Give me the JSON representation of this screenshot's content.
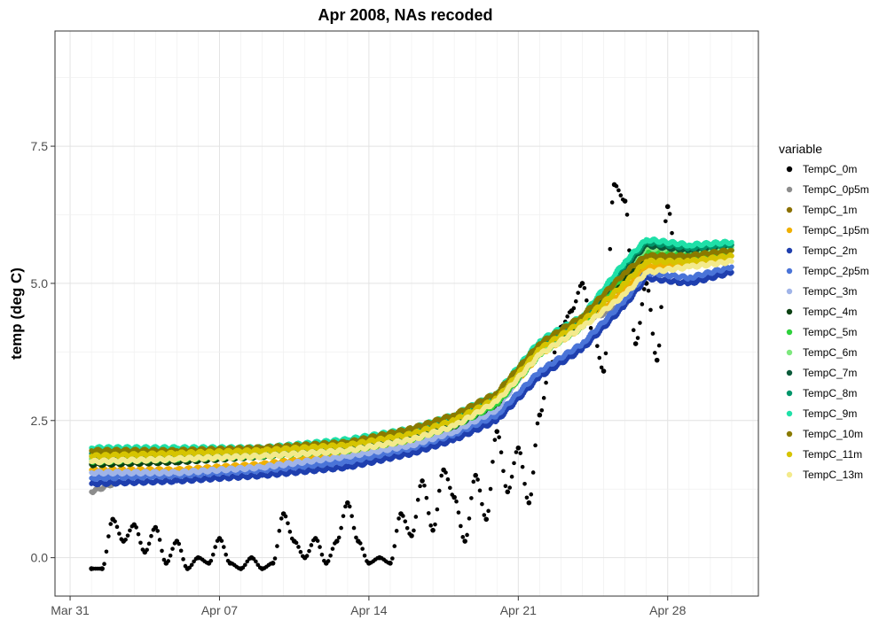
{
  "chart_data": {
    "type": "scatter",
    "title": "Apr 2008, NAs recoded",
    "xlabel": "",
    "ylabel": "temp (deg C)",
    "x_ticks": [
      "Mar 31",
      "Apr 07",
      "Apr 14",
      "Apr 21",
      "Apr 28"
    ],
    "y_ticks": [
      "0.0",
      "2.5",
      "5.0",
      "7.5"
    ],
    "xlim": [
      "2008-03-30T07:00",
      "2008-05-02T06:00"
    ],
    "ylim": [
      -0.7,
      9.6
    ],
    "grid": true,
    "legend_title": "variable",
    "legend_position": "right",
    "series": [
      {
        "name": "TempC_0m",
        "color": "#000000",
        "points": [
          [
            "2008-04-01",
            -0.2
          ],
          [
            "2008-04-01T12:00",
            -0.2
          ],
          [
            "2008-04-02",
            0.7
          ],
          [
            "2008-04-02T12:00",
            0.3
          ],
          [
            "2008-04-03",
            0.6
          ],
          [
            "2008-04-03T12:00",
            0.1
          ],
          [
            "2008-04-04",
            0.55
          ],
          [
            "2008-04-04T12:00",
            -0.1
          ],
          [
            "2008-04-05",
            0.3
          ],
          [
            "2008-04-05T12:00",
            -0.2
          ],
          [
            "2008-04-06",
            0.0
          ],
          [
            "2008-04-06T12:00",
            -0.1
          ],
          [
            "2008-04-07",
            0.35
          ],
          [
            "2008-04-07T12:00",
            -0.1
          ],
          [
            "2008-04-08",
            -0.2
          ],
          [
            "2008-04-08T12:00",
            0.0
          ],
          [
            "2008-04-09",
            -0.2
          ],
          [
            "2008-04-09T12:00",
            -0.1
          ],
          [
            "2008-04-10",
            0.8
          ],
          [
            "2008-04-10T12:00",
            0.3
          ],
          [
            "2008-04-11",
            0.0
          ],
          [
            "2008-04-11T12:00",
            0.35
          ],
          [
            "2008-04-12",
            -0.1
          ],
          [
            "2008-04-12T12:00",
            0.3
          ],
          [
            "2008-04-13",
            1.0
          ],
          [
            "2008-04-13T12:00",
            0.3
          ],
          [
            "2008-04-14",
            -0.1
          ],
          [
            "2008-04-14T12:00",
            0.0
          ],
          [
            "2008-04-15",
            -0.1
          ],
          [
            "2008-04-15T12:00",
            0.8
          ],
          [
            "2008-04-16",
            0.4
          ],
          [
            "2008-04-16T12:00",
            1.4
          ],
          [
            "2008-04-17",
            0.5
          ],
          [
            "2008-04-17T12:00",
            1.6
          ],
          [
            "2008-04-18",
            1.1
          ],
          [
            "2008-04-18T12:00",
            0.3
          ],
          [
            "2008-04-19",
            1.5
          ],
          [
            "2008-04-19T12:00",
            0.7
          ],
          [
            "2008-04-20",
            2.3
          ],
          [
            "2008-04-20T12:00",
            1.2
          ],
          [
            "2008-04-21",
            2.0
          ],
          [
            "2008-04-21T12:00",
            1.0
          ],
          [
            "2008-04-22",
            2.6
          ],
          [
            "2008-04-22T12:00",
            3.5
          ],
          [
            "2008-04-23",
            4.2
          ],
          [
            "2008-04-23T12:00",
            4.5
          ],
          [
            "2008-04-24",
            5.0
          ],
          [
            "2008-04-24T12:00",
            4.1
          ],
          [
            "2008-04-25",
            3.4
          ],
          [
            "2008-04-25T12:00",
            6.8
          ],
          [
            "2008-04-26",
            6.5
          ],
          [
            "2008-04-26T12:00",
            3.9
          ],
          [
            "2008-04-27",
            5.0
          ],
          [
            "2008-04-27T12:00",
            3.6
          ],
          [
            "2008-04-28",
            6.4
          ],
          [
            "2008-04-28T12:00",
            5.0
          ]
        ]
      },
      {
        "name": "TempC_0p5m",
        "color": "#8c8c8c",
        "points": [
          [
            "2008-04-01",
            1.2
          ],
          [
            "2008-04-03",
            1.5
          ],
          [
            "2008-04-07",
            1.6
          ],
          [
            "2008-04-12",
            1.7
          ],
          [
            "2008-04-14",
            2.0
          ],
          [
            "2008-04-18",
            2.4
          ],
          [
            "2008-04-20",
            2.9
          ],
          [
            "2008-04-22",
            3.8
          ],
          [
            "2008-04-24",
            4.3
          ],
          [
            "2008-04-26",
            4.6
          ],
          [
            "2008-04-27",
            5.5
          ],
          [
            "2008-04-29",
            5.5
          ],
          [
            "2008-05-01",
            5.6
          ]
        ]
      },
      {
        "name": "TempC_1m",
        "color": "#8b7000",
        "points": [
          [
            "2008-04-01",
            1.8
          ],
          [
            "2008-04-05",
            1.8
          ],
          [
            "2008-04-09",
            1.85
          ],
          [
            "2008-04-13",
            2.05
          ],
          [
            "2008-04-16",
            2.25
          ],
          [
            "2008-04-18",
            2.45
          ],
          [
            "2008-04-20",
            2.85
          ],
          [
            "2008-04-22",
            3.9
          ],
          [
            "2008-04-24",
            4.3
          ],
          [
            "2008-04-26",
            5.0
          ],
          [
            "2008-04-27",
            5.4
          ],
          [
            "2008-04-29",
            5.5
          ],
          [
            "2008-05-01",
            5.6
          ]
        ]
      },
      {
        "name": "TempC_1p5m",
        "color": "#f0b000",
        "points": [
          [
            "2008-04-01",
            1.6
          ],
          [
            "2008-04-05",
            1.6
          ],
          [
            "2008-04-09",
            1.7
          ],
          [
            "2008-04-13",
            1.9
          ],
          [
            "2008-04-16",
            2.1
          ],
          [
            "2008-04-18",
            2.35
          ],
          [
            "2008-04-20",
            2.8
          ],
          [
            "2008-04-22",
            3.7
          ],
          [
            "2008-04-24",
            4.2
          ],
          [
            "2008-04-26",
            4.9
          ],
          [
            "2008-04-27",
            5.3
          ],
          [
            "2008-04-29",
            5.4
          ],
          [
            "2008-05-01",
            5.5
          ]
        ]
      },
      {
        "name": "TempC_2m",
        "color": "#1f3fae",
        "points": [
          [
            "2008-04-01",
            1.35
          ],
          [
            "2008-04-05",
            1.4
          ],
          [
            "2008-04-09",
            1.5
          ],
          [
            "2008-04-13",
            1.65
          ],
          [
            "2008-04-16",
            1.9
          ],
          [
            "2008-04-18",
            2.15
          ],
          [
            "2008-04-20",
            2.5
          ],
          [
            "2008-04-22",
            3.3
          ],
          [
            "2008-04-24",
            3.8
          ],
          [
            "2008-04-26",
            4.6
          ],
          [
            "2008-04-27",
            5.1
          ],
          [
            "2008-04-29",
            5.0
          ],
          [
            "2008-05-01",
            5.2
          ]
        ]
      },
      {
        "name": "TempC_2p5m",
        "color": "#4a74d8",
        "points": [
          [
            "2008-04-01",
            1.45
          ],
          [
            "2008-04-05",
            1.5
          ],
          [
            "2008-04-09",
            1.6
          ],
          [
            "2008-04-13",
            1.75
          ],
          [
            "2008-04-16",
            2.0
          ],
          [
            "2008-04-18",
            2.25
          ],
          [
            "2008-04-20",
            2.6
          ],
          [
            "2008-04-22",
            3.4
          ],
          [
            "2008-04-24",
            3.9
          ],
          [
            "2008-04-26",
            4.7
          ],
          [
            "2008-04-27",
            5.2
          ],
          [
            "2008-04-29",
            5.1
          ],
          [
            "2008-05-01",
            5.3
          ]
        ]
      },
      {
        "name": "TempC_3m",
        "color": "#a0b4e8",
        "points": [
          [
            "2008-04-01",
            1.55
          ],
          [
            "2008-04-05",
            1.55
          ],
          [
            "2008-04-09",
            1.65
          ],
          [
            "2008-04-13",
            1.85
          ],
          [
            "2008-04-16",
            2.05
          ],
          [
            "2008-04-18",
            2.3
          ],
          [
            "2008-04-20",
            2.7
          ],
          [
            "2008-04-22",
            3.8
          ],
          [
            "2008-04-24",
            4.3
          ],
          [
            "2008-04-26",
            5.2
          ],
          [
            "2008-04-27",
            5.6
          ],
          [
            "2008-04-29",
            5.6
          ],
          [
            "2008-05-01",
            5.7
          ]
        ]
      },
      {
        "name": "TempC_4m",
        "color": "#0b4012",
        "points": [
          [
            "2008-04-01",
            1.7
          ],
          [
            "2008-04-05",
            1.75
          ],
          [
            "2008-04-09",
            1.85
          ],
          [
            "2008-04-13",
            2.0
          ],
          [
            "2008-04-16",
            2.2
          ],
          [
            "2008-04-18",
            2.4
          ],
          [
            "2008-04-20",
            2.8
          ],
          [
            "2008-04-22",
            3.75
          ],
          [
            "2008-04-24",
            4.25
          ],
          [
            "2008-04-26",
            5.1
          ],
          [
            "2008-04-27",
            5.5
          ],
          [
            "2008-04-29",
            5.5
          ],
          [
            "2008-05-01",
            5.6
          ]
        ]
      },
      {
        "name": "TempC_5m",
        "color": "#2ed13c",
        "points": [
          [
            "2008-04-01",
            1.75
          ],
          [
            "2008-04-05",
            1.8
          ],
          [
            "2008-04-09",
            1.85
          ],
          [
            "2008-04-13",
            1.95
          ],
          [
            "2008-04-16",
            2.15
          ],
          [
            "2008-04-18",
            2.4
          ],
          [
            "2008-04-20",
            2.8
          ],
          [
            "2008-04-22",
            3.7
          ],
          [
            "2008-04-24",
            4.2
          ],
          [
            "2008-04-26",
            5.2
          ],
          [
            "2008-04-27",
            5.6
          ],
          [
            "2008-04-29",
            5.5
          ],
          [
            "2008-05-01",
            5.6
          ]
        ]
      },
      {
        "name": "TempC_6m",
        "color": "#7de87d",
        "points": [
          [
            "2008-04-01",
            1.8
          ],
          [
            "2008-04-05",
            1.85
          ],
          [
            "2008-04-09",
            1.9
          ],
          [
            "2008-04-13",
            2.0
          ],
          [
            "2008-04-16",
            2.2
          ],
          [
            "2008-04-18",
            2.45
          ],
          [
            "2008-04-20",
            2.85
          ],
          [
            "2008-04-22",
            3.8
          ],
          [
            "2008-04-24",
            4.3
          ],
          [
            "2008-04-26",
            5.3
          ],
          [
            "2008-04-27",
            5.65
          ],
          [
            "2008-04-29",
            5.6
          ],
          [
            "2008-05-01",
            5.65
          ]
        ]
      },
      {
        "name": "TempC_7m",
        "color": "#0b5a3a",
        "points": [
          [
            "2008-04-01",
            1.85
          ],
          [
            "2008-04-05",
            1.9
          ],
          [
            "2008-04-09",
            1.95
          ],
          [
            "2008-04-13",
            2.05
          ],
          [
            "2008-04-16",
            2.25
          ],
          [
            "2008-04-18",
            2.5
          ],
          [
            "2008-04-20",
            2.9
          ],
          [
            "2008-04-22",
            3.85
          ],
          [
            "2008-04-24",
            4.3
          ],
          [
            "2008-04-26",
            5.3
          ],
          [
            "2008-04-27",
            5.7
          ],
          [
            "2008-04-29",
            5.6
          ],
          [
            "2008-05-01",
            5.7
          ]
        ]
      },
      {
        "name": "TempC_8m",
        "color": "#00956a",
        "points": [
          [
            "2008-04-01",
            1.9
          ],
          [
            "2008-04-05",
            1.95
          ],
          [
            "2008-04-09",
            1.95
          ],
          [
            "2008-04-13",
            2.1
          ],
          [
            "2008-04-16",
            2.3
          ],
          [
            "2008-04-18",
            2.55
          ],
          [
            "2008-04-20",
            2.95
          ],
          [
            "2008-04-22",
            3.9
          ],
          [
            "2008-04-24",
            4.35
          ],
          [
            "2008-04-26",
            5.35
          ],
          [
            "2008-04-27",
            5.75
          ],
          [
            "2008-04-29",
            5.65
          ],
          [
            "2008-05-01",
            5.7
          ]
        ]
      },
      {
        "name": "TempC_9m",
        "color": "#1fe0a8",
        "points": [
          [
            "2008-04-01",
            2.0
          ],
          [
            "2008-04-05",
            2.0
          ],
          [
            "2008-04-09",
            2.0
          ],
          [
            "2008-04-13",
            2.15
          ],
          [
            "2008-04-16",
            2.35
          ],
          [
            "2008-04-18",
            2.6
          ],
          [
            "2008-04-20",
            3.0
          ],
          [
            "2008-04-22",
            3.95
          ],
          [
            "2008-04-24",
            4.4
          ],
          [
            "2008-04-26",
            5.4
          ],
          [
            "2008-04-27",
            5.8
          ],
          [
            "2008-04-29",
            5.7
          ],
          [
            "2008-05-01",
            5.75
          ]
        ]
      },
      {
        "name": "TempC_10m",
        "color": "#8a7a00",
        "points": [
          [
            "2008-04-01",
            1.95
          ],
          [
            "2008-04-05",
            1.95
          ],
          [
            "2008-04-09",
            2.0
          ],
          [
            "2008-04-13",
            2.1
          ],
          [
            "2008-04-16",
            2.35
          ],
          [
            "2008-04-18",
            2.6
          ],
          [
            "2008-04-20",
            3.0
          ],
          [
            "2008-04-22",
            3.9
          ],
          [
            "2008-04-24",
            4.4
          ],
          [
            "2008-04-26",
            5.2
          ],
          [
            "2008-04-27",
            5.5
          ],
          [
            "2008-04-29",
            5.5
          ],
          [
            "2008-05-01",
            5.6
          ]
        ]
      },
      {
        "name": "TempC_11m",
        "color": "#d6c400",
        "points": [
          [
            "2008-04-01",
            1.85
          ],
          [
            "2008-04-05",
            1.9
          ],
          [
            "2008-04-09",
            1.95
          ],
          [
            "2008-04-13",
            2.05
          ],
          [
            "2008-04-16",
            2.25
          ],
          [
            "2008-04-18",
            2.5
          ],
          [
            "2008-04-20",
            2.9
          ],
          [
            "2008-04-22",
            3.8
          ],
          [
            "2008-04-24",
            4.3
          ],
          [
            "2008-04-26",
            5.0
          ],
          [
            "2008-04-27",
            5.4
          ],
          [
            "2008-04-29",
            5.4
          ],
          [
            "2008-05-01",
            5.5
          ]
        ]
      },
      {
        "name": "TempC_13m",
        "color": "#f3ea8c",
        "points": [
          [
            "2008-04-01",
            1.75
          ],
          [
            "2008-04-05",
            1.8
          ],
          [
            "2008-04-09",
            1.85
          ],
          [
            "2008-04-13",
            1.95
          ],
          [
            "2008-04-16",
            2.15
          ],
          [
            "2008-04-18",
            2.4
          ],
          [
            "2008-04-20",
            2.85
          ],
          [
            "2008-04-22",
            3.7
          ],
          [
            "2008-04-24",
            4.2
          ],
          [
            "2008-04-26",
            4.8
          ],
          [
            "2008-04-27",
            5.2
          ],
          [
            "2008-04-29",
            5.3
          ],
          [
            "2008-05-01",
            5.4
          ]
        ]
      }
    ]
  }
}
